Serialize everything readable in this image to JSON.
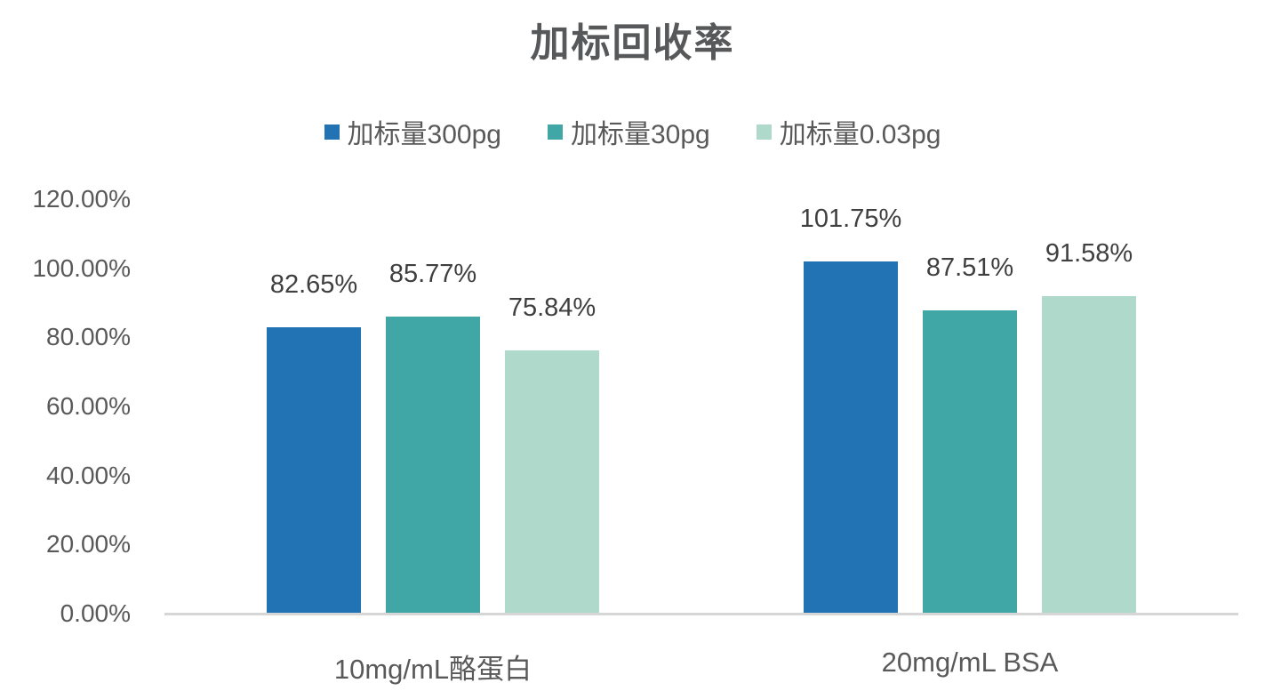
{
  "chart_data": {
    "type": "bar",
    "title": "加标回收率",
    "categories": [
      "10mg/mL酪蛋白",
      "20mg/mL BSA"
    ],
    "series": [
      {
        "name": "加标量300pg",
        "color": "#2173B4",
        "values": [
          82.65,
          101.75
        ],
        "labels": [
          "82.65%",
          "101.75%"
        ]
      },
      {
        "name": "加标量30pg",
        "color": "#40A6A6",
        "values": [
          85.77,
          87.51
        ],
        "labels": [
          "85.77%",
          "87.51%"
        ]
      },
      {
        "name": "加标量0.03pg",
        "color": "#AFD9CB",
        "values": [
          75.84,
          91.58
        ],
        "labels": [
          "75.84%",
          "91.58%"
        ]
      }
    ],
    "y_axis": {
      "min": 0,
      "max": 120,
      "step": 20,
      "tick_labels": [
        "0.00%",
        "20.00%",
        "40.00%",
        "60.00%",
        "80.00%",
        "100.00%",
        "120.00%"
      ]
    },
    "legend_position": "top",
    "grid": false,
    "data_labels_shown": true,
    "colors": {
      "title_text": "#57585A",
      "axis_text": "#595959",
      "data_label_text": "#3F3F3F",
      "axis_line": "#D6D6D6",
      "background": "#FFFFFF"
    }
  }
}
